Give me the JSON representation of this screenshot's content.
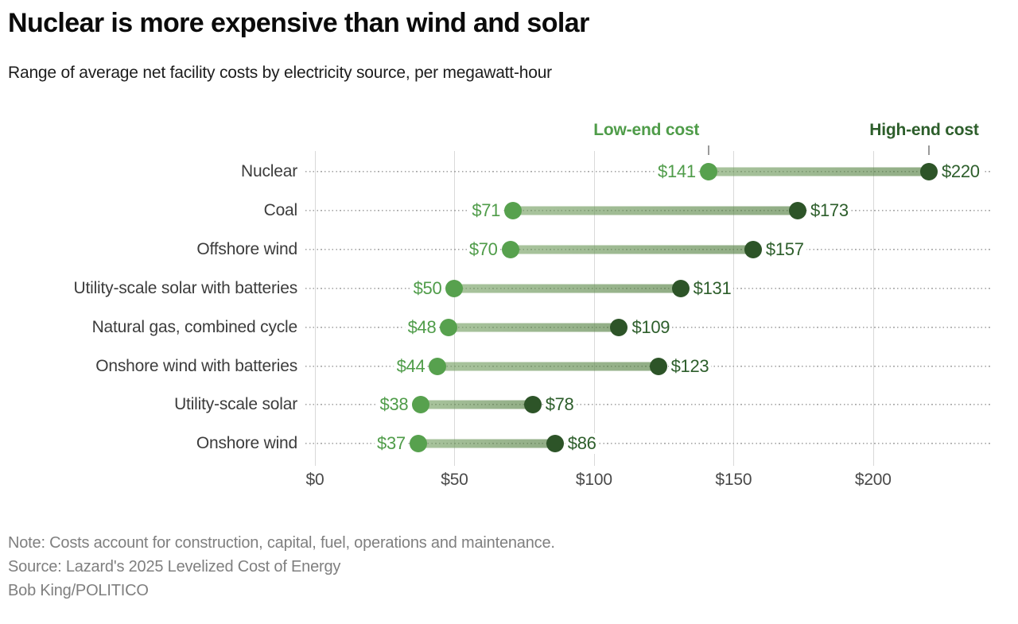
{
  "header": {
    "title": "Nuclear is more expensive than wind and solar",
    "subtitle": "Range of average net facility costs by electricity source, per megawatt-hour"
  },
  "chart_data": {
    "type": "bar",
    "subtype": "dumbbell-range",
    "title": "Nuclear is more expensive than wind and solar",
    "subtitle": "Range of average net facility costs by electricity source, per megawatt-hour",
    "categories": [
      "Nuclear",
      "Coal",
      "Offshore wind",
      "Utility-scale solar with batteries",
      "Natural gas, combined cycle",
      "Onshore wind with batteries",
      "Utility-scale solar",
      "Onshore wind"
    ],
    "series": [
      {
        "name": "Low-end cost",
        "values": [
          141,
          71,
          70,
          50,
          48,
          44,
          38,
          37
        ],
        "value_labels": [
          "$141",
          "$71",
          "$70",
          "$50",
          "$48",
          "$44",
          "$38",
          "$37"
        ]
      },
      {
        "name": "High-end cost",
        "values": [
          220,
          173,
          157,
          131,
          109,
          123,
          78,
          86
        ],
        "value_labels": [
          "$220",
          "$173",
          "$157",
          "$131",
          "$109",
          "$123",
          "$78",
          "$86"
        ]
      }
    ],
    "xlabel": "",
    "ylabel": "",
    "xlim": [
      0,
      245
    ],
    "x_ticks": [
      0,
      50,
      100,
      150,
      200
    ],
    "x_tick_labels": [
      "$0",
      "$50",
      "$100",
      "$150",
      "$200"
    ],
    "grid": "vertical",
    "legend_position": "above first row, labels pointing to low/high dots"
  },
  "colors": {
    "low_dot": "#57a14e",
    "high_dot": "#2d5428",
    "low_text": "#4f9c49",
    "high_text": "#2d5e2b",
    "bar_gradient_start": "rgba(116,160,97,0.62)",
    "bar_gradient_end": "rgba(77,122,58,0.62)",
    "gridline": "#d9d9d9",
    "leader_dots": "#a5a5a5"
  },
  "footer": {
    "note": "Note: Costs account for construction, capital, fuel, operations and maintenance.",
    "source": "Source: Lazard's 2025 Levelized Cost of Energy",
    "credit": "Bob King/POLITICO"
  }
}
